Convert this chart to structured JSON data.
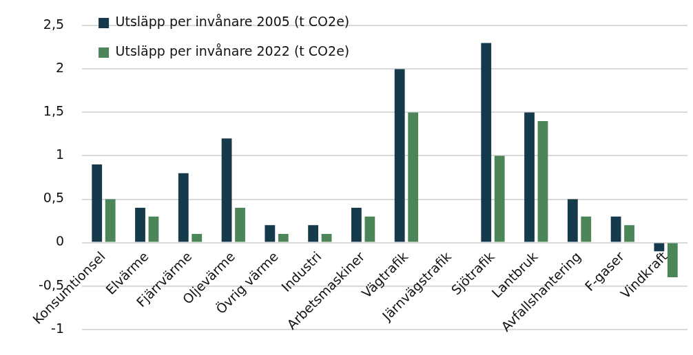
{
  "chart_data": {
    "type": "bar",
    "categories": [
      "Konsumtionsel",
      "Elvärme",
      "Fjärrvärme",
      "Oljevärme",
      "Övrig värme",
      "Industri",
      "Arbetsmaskiner",
      "Vägtrafik",
      "Järnvägstrafik",
      "Sjötrafik",
      "Lantbruk",
      "Avfallshantering",
      "F-gaser",
      "Vindkraft"
    ],
    "series": [
      {
        "name": "Utsläpp per invånare 2005 (t CO2e)",
        "color": "#143a4c",
        "values": [
          0.9,
          0.4,
          0.8,
          1.2,
          0.2,
          0.2,
          0.4,
          2.0,
          0,
          2.3,
          1.5,
          0.5,
          0.3,
          -0.1
        ]
      },
      {
        "name": "Utsläpp per invånare 2022 (t CO2e)",
        "color": "#4c8658",
        "values": [
          0.5,
          0.3,
          0.1,
          0.4,
          0.1,
          0.1,
          0.3,
          1.5,
          0,
          1.0,
          1.4,
          0.3,
          0.2,
          -0.4
        ]
      }
    ],
    "ylim": [
      -1,
      2.5
    ],
    "yticks": [
      -1,
      {
        "value": -0.5,
        "label": "-0,5"
      },
      0,
      {
        "value": 0.5,
        "label": "0,5"
      },
      1,
      {
        "value": 1.5,
        "label": "1,5"
      },
      2,
      {
        "value": 2.5,
        "label": "2,5"
      }
    ],
    "grid": "y",
    "legend": "top left"
  }
}
